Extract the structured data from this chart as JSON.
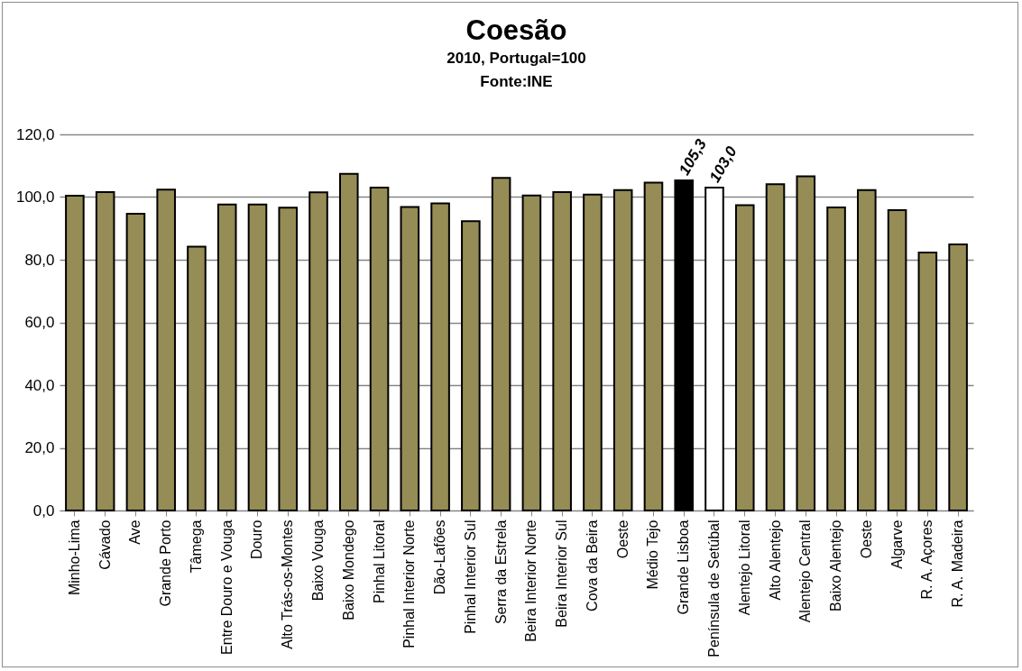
{
  "chart_data": {
    "type": "bar",
    "title": "Coesão",
    "subtitle": "2010, Portugal=100",
    "annotations": [
      "Fonte:INE"
    ],
    "categories": [
      "Minho-Lima",
      "Cávado",
      "Ave",
      "Grande Porto",
      "Tâmega",
      "Entre Douro e Vouga",
      "Douro",
      "Alto Trás-os-Montes",
      "Baixo Vouga",
      "Baixo Mondego",
      "Pinhal Litoral",
      "Pinhal Interior Norte",
      "Dão-Lafões",
      "Pinhal Interior Sul",
      "Serra da Estrela",
      "Beira Interior Norte",
      "Beira Interior Sul",
      "Cova da Beira",
      "Oeste",
      "Médio Tejo",
      "Grande Lisboa",
      "Península de Setúbal",
      "Alentejo Litoral",
      "Alto Alentejo",
      "Alentejo Central",
      "Baixo Alentejo",
      "Oeste",
      "Algarve",
      "R. A. Açores",
      "R. A. Madeira"
    ],
    "values": [
      100.4,
      101.6,
      94.7,
      102.4,
      84.2,
      97.6,
      97.6,
      96.6,
      101.5,
      107.4,
      103.0,
      96.8,
      98.0,
      92.3,
      106.1,
      100.5,
      101.6,
      100.8,
      102.2,
      104.6,
      105.3,
      103.0,
      97.4,
      104.1,
      106.6,
      96.7,
      102.2,
      95.8,
      82.3,
      84.9
    ],
    "colors": [
      "#968c55",
      "#968c55",
      "#968c55",
      "#968c55",
      "#968c55",
      "#968c55",
      "#968c55",
      "#968c55",
      "#968c55",
      "#968c55",
      "#968c55",
      "#968c55",
      "#968c55",
      "#968c55",
      "#968c55",
      "#968c55",
      "#968c55",
      "#968c55",
      "#968c55",
      "#968c55",
      "#000000",
      "#ffffff",
      "#968c55",
      "#968c55",
      "#968c55",
      "#968c55",
      "#968c55",
      "#968c55",
      "#968c55",
      "#968c55"
    ],
    "value_labels": [
      null,
      null,
      null,
      null,
      null,
      null,
      null,
      null,
      null,
      null,
      null,
      null,
      null,
      null,
      null,
      null,
      null,
      null,
      null,
      null,
      "105,3",
      "103,0",
      null,
      null,
      null,
      null,
      null,
      null,
      null,
      null
    ],
    "ylim": [
      0,
      120
    ],
    "yticks": [
      {
        "value": 0,
        "label": "0,0"
      },
      {
        "value": 20,
        "label": "20,0"
      },
      {
        "value": 40,
        "label": "40,0"
      },
      {
        "value": 60,
        "label": "60,0"
      },
      {
        "value": 80,
        "label": "80,0"
      },
      {
        "value": 100,
        "label": "100,0"
      },
      {
        "value": 120,
        "label": "120,0"
      }
    ],
    "grid": "y"
  }
}
